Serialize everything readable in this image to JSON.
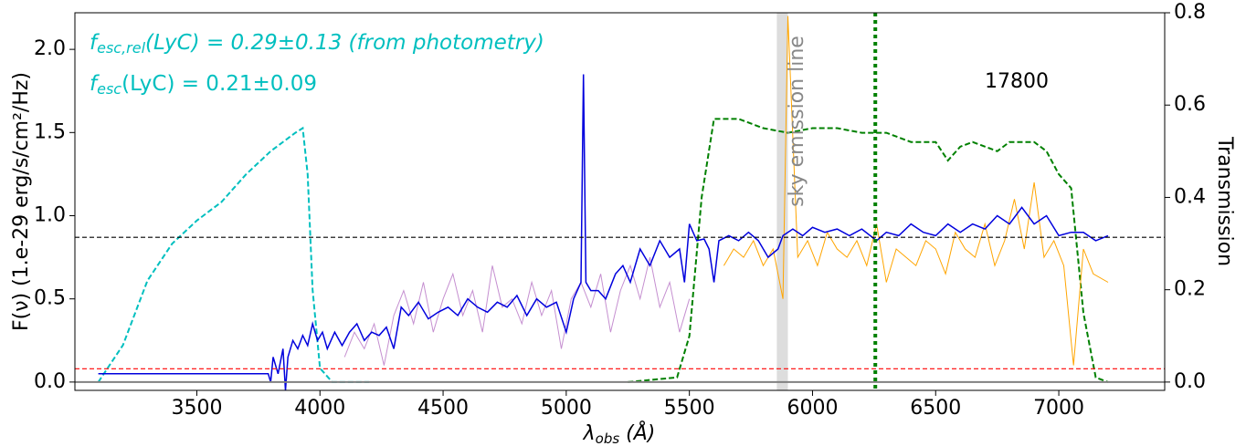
{
  "chart_data": {
    "type": "line",
    "annotations": [
      {
        "f": "f",
        "sub": "esc,rel",
        "rest": "(LyC) = 0.29±0.13 (from photometry)"
      },
      {
        "f": "f",
        "sub": "esc",
        "rest": "(LyC) = 0.21±0.09"
      }
    ],
    "id_label": "17800",
    "band_label": "sky emission line",
    "xlabel": {
      "main": "λ",
      "sub": "obs",
      "rest": " (Å)"
    },
    "ylabel": "F(ν) (1.e-29 erg/s/cm²/Hz)",
    "y2label": "Transmission",
    "xlim": [
      3005,
      7430
    ],
    "ylim": [
      -0.05,
      2.22
    ],
    "y2lim": [
      -0.018,
      0.8
    ],
    "xticks": [
      3500,
      4000,
      4500,
      5000,
      5500,
      6000,
      6500,
      7000
    ],
    "yticks": [
      {
        "value": 0,
        "label": "0.0"
      },
      0.5,
      {
        "value": 1,
        "label": "1.0"
      },
      1.5,
      {
        "value": 2,
        "label": "2.0"
      }
    ],
    "y2ticks": [
      {
        "value": 0,
        "label": "0.0"
      },
      0.2,
      0.4,
      0.6,
      0.8
    ],
    "band": {
      "x": [
        5855,
        5900
      ],
      "color": "#dddddd"
    },
    "vline": {
      "x": 6255,
      "color": "green"
    },
    "hlines": [
      {
        "y": 0.87,
        "color": "black"
      },
      {
        "y": 0.08,
        "color": "red"
      },
      {
        "y": 0,
        "color": "gray"
      }
    ],
    "series": [
      {
        "color": "#00bfbf",
        "dash": true,
        "axis": "y2",
        "width": 2,
        "x": [
          3100,
          3200,
          3300,
          3400,
          3500,
          3600,
          3700,
          3800,
          3900,
          3930,
          3950,
          3970,
          4000,
          4050,
          4200
        ],
        "values": [
          0,
          0.08,
          0.22,
          0.3,
          0.35,
          0.39,
          0.45,
          0.5,
          0.54,
          0.55,
          0.45,
          0.2,
          0.03,
          0,
          0
        ]
      },
      {
        "color": "green",
        "dash": true,
        "axis": "y2",
        "width": 2,
        "x": [
          5250,
          5450,
          5500,
          5550,
          5600,
          5700,
          5800,
          5900,
          6000,
          6100,
          6200,
          6300,
          6400,
          6500,
          6550,
          6600,
          6650,
          6750,
          6800,
          6900,
          6950,
          7000,
          7050,
          7100,
          7150,
          7200
        ],
        "values": [
          0,
          0.01,
          0.1,
          0.4,
          0.57,
          0.57,
          0.55,
          0.54,
          0.55,
          0.55,
          0.54,
          0.54,
          0.52,
          0.52,
          0.48,
          0.51,
          0.52,
          0.5,
          0.52,
          0.52,
          0.5,
          0.45,
          0.42,
          0.15,
          0.01,
          0
        ]
      },
      {
        "color": "#c58fd0",
        "dash": false,
        "axis": "y",
        "width": 1,
        "x": [
          4100,
          4140,
          4180,
          4220,
          4260,
          4300,
          4340,
          4380,
          4420,
          4460,
          4500,
          4540,
          4580,
          4620,
          4660,
          4700,
          4740,
          4780,
          4820,
          4860,
          4900,
          4940,
          4980,
          5020,
          5060,
          5100,
          5140,
          5180,
          5220,
          5260,
          5300,
          5340,
          5380,
          5420,
          5460,
          5500
        ],
        "values": [
          0.15,
          0.3,
          0.2,
          0.35,
          0.1,
          0.4,
          0.55,
          0.35,
          0.6,
          0.3,
          0.5,
          0.65,
          0.4,
          0.55,
          0.3,
          0.7,
          0.45,
          0.5,
          0.35,
          0.6,
          0.4,
          0.55,
          0.2,
          0.5,
          0.6,
          0.45,
          0.65,
          0.3,
          0.55,
          0.7,
          0.5,
          0.75,
          0.45,
          0.6,
          0.3,
          0.5
        ]
      },
      {
        "color": "orange",
        "dash": false,
        "axis": "y",
        "width": 1,
        "x": [
          5640,
          5680,
          5720,
          5760,
          5800,
          5840,
          5880,
          5900,
          5940,
          5980,
          6020,
          6060,
          6100,
          6140,
          6180,
          6220,
          6260,
          6300,
          6340,
          6380,
          6420,
          6460,
          6500,
          6540,
          6580,
          6620,
          6660,
          6700,
          6740,
          6780,
          6820,
          6860,
          6900,
          6940,
          6980,
          7020,
          7060,
          7100,
          7140,
          7200
        ],
        "values": [
          0.7,
          0.8,
          0.75,
          0.85,
          0.7,
          0.8,
          0.5,
          2.2,
          0.75,
          0.85,
          0.7,
          0.9,
          0.8,
          0.75,
          0.85,
          0.7,
          0.95,
          0.6,
          0.8,
          0.75,
          0.7,
          0.85,
          0.8,
          0.65,
          0.9,
          0.8,
          0.75,
          0.95,
          0.7,
          0.85,
          1.1,
          0.8,
          1.2,
          0.75,
          0.85,
          0.7,
          0.1,
          0.8,
          0.65,
          0.6
        ]
      },
      {
        "color": "#0000dd",
        "dash": false,
        "axis": "y",
        "width": 1.5,
        "x": [
          3100,
          3790,
          3800,
          3810,
          3830,
          3850,
          3860,
          3870,
          3890,
          3910,
          3930,
          3950,
          3970,
          3990,
          4010,
          4030,
          4060,
          4090,
          4120,
          4150,
          4180,
          4210,
          4240,
          4270,
          4300,
          4330,
          4360,
          4400,
          4440,
          4480,
          4520,
          4560,
          4600,
          4640,
          4680,
          4720,
          4760,
          4800,
          4840,
          4880,
          4920,
          4960,
          5000,
          5030,
          5060,
          5070,
          5080,
          5100,
          5130,
          5160,
          5200,
          5230,
          5260,
          5300,
          5340,
          5380,
          5420,
          5460,
          5480,
          5500,
          5530,
          5560,
          5580,
          5600,
          5620,
          5660,
          5700,
          5740,
          5780,
          5820,
          5860,
          5880,
          5920,
          5960,
          6000,
          6050,
          6100,
          6150,
          6200,
          6260,
          6300,
          6350,
          6400,
          6450,
          6500,
          6550,
          6600,
          6650,
          6700,
          6750,
          6800,
          6850,
          6900,
          6950,
          7000,
          7050,
          7100,
          7150,
          7200
        ],
        "values": [
          0.05,
          0.05,
          0,
          0.15,
          0.05,
          0.2,
          -0.05,
          0.15,
          0.25,
          0.2,
          0.28,
          0.22,
          0.35,
          0.25,
          0.3,
          0.2,
          0.3,
          0.22,
          0.3,
          0.35,
          0.25,
          0.3,
          0.28,
          0.33,
          0.2,
          0.45,
          0.4,
          0.48,
          0.38,
          0.42,
          0.45,
          0.4,
          0.5,
          0.45,
          0.42,
          0.48,
          0.45,
          0.52,
          0.4,
          0.5,
          0.45,
          0.48,
          0.3,
          0.5,
          0.6,
          1.85,
          0.6,
          0.55,
          0.55,
          0.5,
          0.65,
          0.7,
          0.6,
          0.8,
          0.7,
          0.85,
          0.75,
          0.8,
          0.6,
          0.95,
          0.85,
          0.86,
          0.8,
          0.6,
          0.85,
          0.88,
          0.85,
          0.9,
          0.85,
          0.75,
          0.8,
          0.88,
          0.92,
          0.88,
          0.93,
          0.9,
          0.92,
          0.88,
          0.92,
          0.85,
          0.9,
          0.88,
          0.95,
          0.9,
          0.88,
          0.95,
          0.9,
          0.95,
          0.92,
          1.0,
          0.95,
          1.05,
          0.95,
          1.0,
          0.88,
          0.9,
          0.9,
          0.85,
          0.88
        ]
      }
    ]
  }
}
